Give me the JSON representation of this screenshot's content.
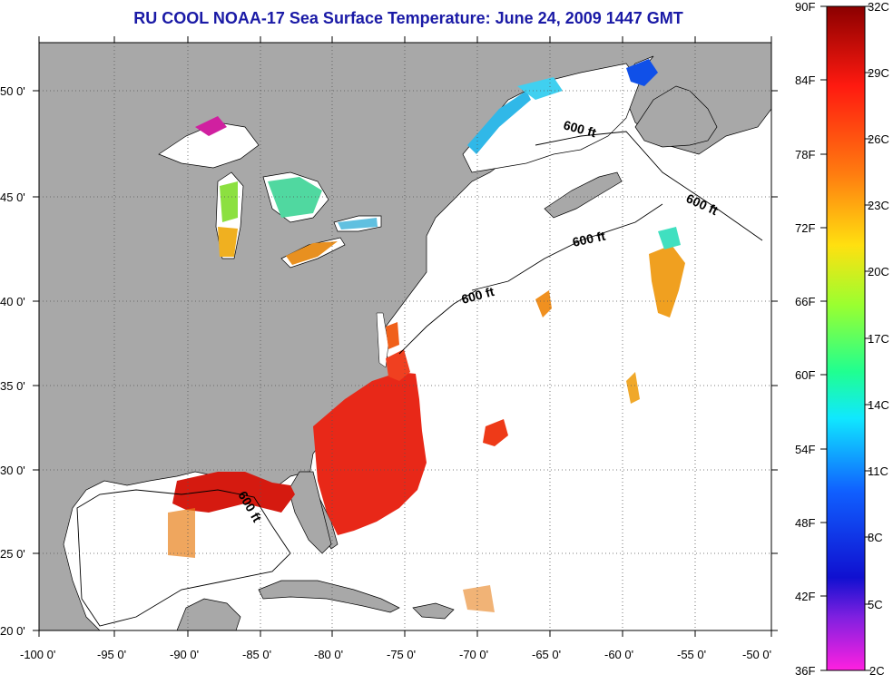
{
  "title": "RU COOL  NOAA-17  Sea Surface Temperature:  June 24, 2009 1447 GMT",
  "axes": {
    "lon_ticks": [
      "-100 0'",
      "-95 0'",
      "-90 0'",
      "-85 0'",
      "-80 0'",
      "-75 0'",
      "-70 0'",
      "-65 0'",
      "-60 0'",
      "-55 0'",
      "-50 0'"
    ],
    "lat_ticks": [
      "20 0'",
      "25 0'",
      "30 0'",
      "35 0'",
      "40 0'",
      "45 0'",
      "50 0'"
    ]
  },
  "contour_labels": [
    "600 ft",
    "600 ft",
    "600 ft",
    "600 ft",
    "600 ft"
  ],
  "colorbar": {
    "fahrenheit": [
      "90F",
      "84F",
      "78F",
      "72F",
      "66F",
      "60F",
      "54F",
      "48F",
      "42F",
      "36F"
    ],
    "celsius": [
      "32C",
      "29C",
      "26C",
      "23C",
      "20C",
      "17C",
      "14C",
      "11C",
      "8C",
      "5C",
      "2C"
    ]
  },
  "colors": {
    "land": "#a8a8a8",
    "water": "#ffffff",
    "title": "#1a1aa6",
    "warm": "#e8241a",
    "hot": "#d51a10",
    "orange": "#f08a1a",
    "cool": "#30c0e0"
  }
}
